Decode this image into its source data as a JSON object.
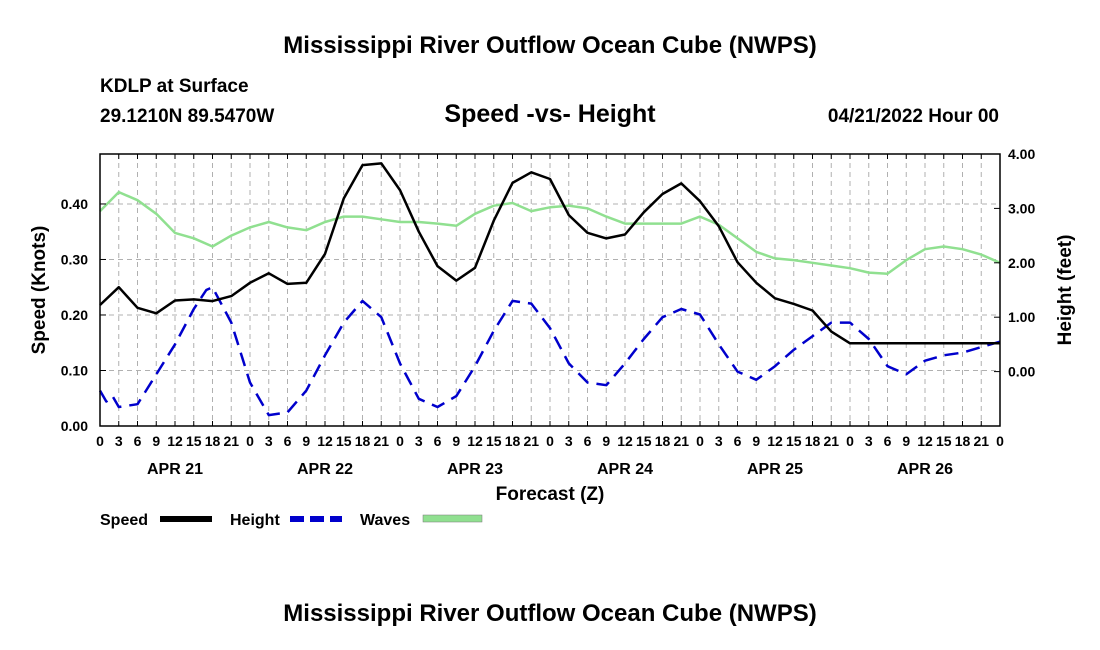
{
  "header": {
    "title": "Mississippi River Outflow Ocean Cube (NWPS)",
    "station": "KDLP at Surface",
    "coords": "29.1210N  89.5470W",
    "chart_title": "Speed -vs- Height",
    "datetime": "04/21/2022 Hour 00"
  },
  "footer": {
    "title": "Mississippi River Outflow Ocean Cube (NWPS)"
  },
  "colors": {
    "speed": "#000000",
    "height": "#0000cc",
    "waves": "#90e090",
    "grid": "#b0b0b0"
  },
  "chart_data": {
    "type": "line",
    "title": "Speed -vs- Height",
    "xlabel": "Forecast (Z)",
    "ylabel": "Speed (Knots)",
    "ylabel_right": "Height (feet)",
    "ylim": [
      0,
      0.49
    ],
    "ylim_right": [
      -1,
      4
    ],
    "xlim": [
      0,
      144
    ],
    "yticks": [
      "0.00",
      "0.10",
      "0.20",
      "0.30",
      "0.40"
    ],
    "yticks_values": [
      0,
      0.1,
      0.2,
      0.3,
      0.4
    ],
    "yticks_right": [
      "0.00",
      "1.00",
      "2.00",
      "3.00",
      "4.00"
    ],
    "yticks_right_values": [
      0,
      1,
      2,
      3,
      4
    ],
    "x_hour_labels": [
      "0",
      "3",
      "6",
      "9",
      "12",
      "15",
      "18",
      "21",
      "0",
      "3",
      "6",
      "9",
      "12",
      "15",
      "18",
      "21",
      "0",
      "3",
      "6",
      "9",
      "12",
      "15",
      "18",
      "21",
      "0",
      "3",
      "6",
      "9",
      "12",
      "15",
      "18",
      "21",
      "0",
      "3",
      "6",
      "9",
      "12",
      "15",
      "18",
      "21",
      "0",
      "3",
      "6",
      "9",
      "12",
      "15",
      "18",
      "21",
      "0"
    ],
    "day_labels": [
      "APR 21",
      "APR 22",
      "APR 23",
      "APR 24",
      "APR 25",
      "APR 26"
    ],
    "legend": [
      "Speed",
      "Height",
      "Waves"
    ],
    "series": [
      {
        "name": "Speed",
        "axis": "left",
        "style": "solid",
        "x": [
          0,
          3,
          6,
          9,
          12,
          15,
          18,
          21,
          24,
          27,
          30,
          33,
          36,
          39,
          42,
          45,
          48,
          51,
          54,
          57,
          60,
          63,
          66,
          69,
          72,
          75,
          78,
          81,
          84,
          87,
          90,
          93,
          96,
          99,
          102,
          105,
          108,
          111,
          114,
          117,
          120,
          123,
          126,
          129,
          132,
          135,
          138,
          141,
          144
        ],
        "values": [
          0.218,
          0.25,
          0.213,
          0.203,
          0.226,
          0.228,
          0.225,
          0.234,
          0.258,
          0.275,
          0.256,
          0.258,
          0.31,
          0.41,
          0.47,
          0.473,
          0.425,
          0.35,
          0.288,
          0.262,
          0.285,
          0.37,
          0.438,
          0.457,
          0.445,
          0.38,
          0.348,
          0.338,
          0.345,
          0.385,
          0.418,
          0.437,
          0.405,
          0.36,
          0.295,
          0.258,
          0.23,
          0.22,
          0.208,
          0.17,
          0.149,
          0.149,
          0.149,
          0.149,
          0.149,
          0.149,
          0.149,
          0.149,
          0.149
        ]
      },
      {
        "name": "Height",
        "axis": "right",
        "style": "dashed",
        "x": [
          0,
          1,
          2,
          3,
          6,
          9,
          12,
          15,
          17,
          18,
          21,
          24,
          27,
          30,
          33,
          36,
          39,
          42,
          45,
          48,
          51,
          54,
          57,
          60,
          63,
          66,
          69,
          72,
          75,
          78,
          81,
          84,
          87,
          90,
          93,
          96,
          99,
          102,
          105,
          108,
          111,
          114,
          117,
          120,
          123,
          126,
          129,
          132,
          135,
          138,
          141,
          144
        ],
        "values": [
          -0.35,
          -0.55,
          -0.45,
          -0.65,
          -0.6,
          -0.05,
          0.5,
          1.15,
          1.5,
          1.55,
          0.9,
          -0.2,
          -0.8,
          -0.75,
          -0.35,
          0.3,
          0.9,
          1.3,
          1.0,
          0.15,
          -0.5,
          -0.65,
          -0.45,
          0.1,
          0.75,
          1.3,
          1.25,
          0.8,
          0.15,
          -0.2,
          -0.25,
          0.15,
          0.6,
          1.0,
          1.15,
          1.05,
          0.5,
          0.0,
          -0.15,
          0.1,
          0.4,
          0.65,
          0.9,
          0.9,
          0.6,
          0.1,
          -0.05,
          0.2,
          0.3,
          0.35,
          0.45,
          0.55
        ]
      },
      {
        "name": "Waves",
        "axis": "right",
        "style": "solid",
        "x": [
          0,
          3,
          6,
          9,
          12,
          15,
          18,
          21,
          24,
          27,
          30,
          33,
          36,
          39,
          42,
          45,
          48,
          51,
          54,
          57,
          60,
          63,
          66,
          69,
          72,
          75,
          78,
          81,
          84,
          87,
          90,
          93,
          96,
          99,
          102,
          105,
          108,
          111,
          114,
          117,
          120,
          123,
          126,
          129,
          132,
          135,
          138,
          141,
          144
        ],
        "values": [
          2.95,
          3.3,
          3.15,
          2.9,
          2.55,
          2.45,
          2.3,
          2.5,
          2.65,
          2.75,
          2.65,
          2.6,
          2.75,
          2.85,
          2.85,
          2.8,
          2.75,
          2.75,
          2.72,
          2.68,
          2.9,
          3.05,
          3.1,
          2.95,
          3.02,
          3.05,
          3.0,
          2.85,
          2.72,
          2.72,
          2.72,
          2.72,
          2.85,
          2.7,
          2.45,
          2.2,
          2.08,
          2.05,
          2.0,
          1.95,
          1.9,
          1.82,
          1.8,
          2.05,
          2.25,
          2.3,
          2.25,
          2.15,
          2.0
        ]
      }
    ]
  }
}
